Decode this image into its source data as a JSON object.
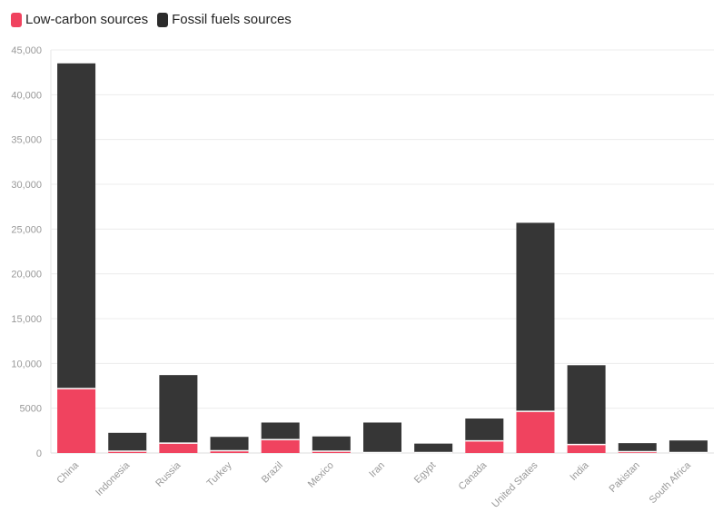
{
  "legend": {
    "items": [
      {
        "label": "Low-carbon sources",
        "color": "#f0435f"
      },
      {
        "label": "Fossil fuels sources",
        "color": "#2b2b2b"
      }
    ]
  },
  "chart_data": {
    "type": "bar",
    "stacked": true,
    "categories": [
      "China",
      "Indonesia",
      "Russia",
      "Turkey",
      "Brazil",
      "Mexico",
      "Iran",
      "Egypt",
      "Canada",
      "United States",
      "India",
      "Pakistan",
      "South Africa"
    ],
    "series": [
      {
        "name": "Low-carbon sources",
        "color": "#f0435f",
        "values": [
          7200,
          200,
          1100,
          250,
          1500,
          200,
          50,
          50,
          1350,
          4650,
          950,
          150,
          50
        ]
      },
      {
        "name": "Fossil fuels sources",
        "color": "#363636",
        "values": [
          36300,
          2050,
          7600,
          1550,
          1900,
          1650,
          3350,
          1000,
          2500,
          21050,
          8850,
          950,
          1350
        ]
      }
    ],
    "ylim": [
      0,
      45000
    ],
    "yticks": [
      0,
      5000,
      10000,
      15000,
      20000,
      25000,
      30000,
      35000,
      40000,
      45000
    ],
    "ytick_labels": [
      "0",
      "5000",
      "10,000",
      "15,000",
      "20,000",
      "25,000",
      "30,000",
      "35,000",
      "40,000",
      "45,000"
    ],
    "grid": true,
    "legend_position": "top-left",
    "title": "",
    "xlabel": "",
    "ylabel": ""
  }
}
